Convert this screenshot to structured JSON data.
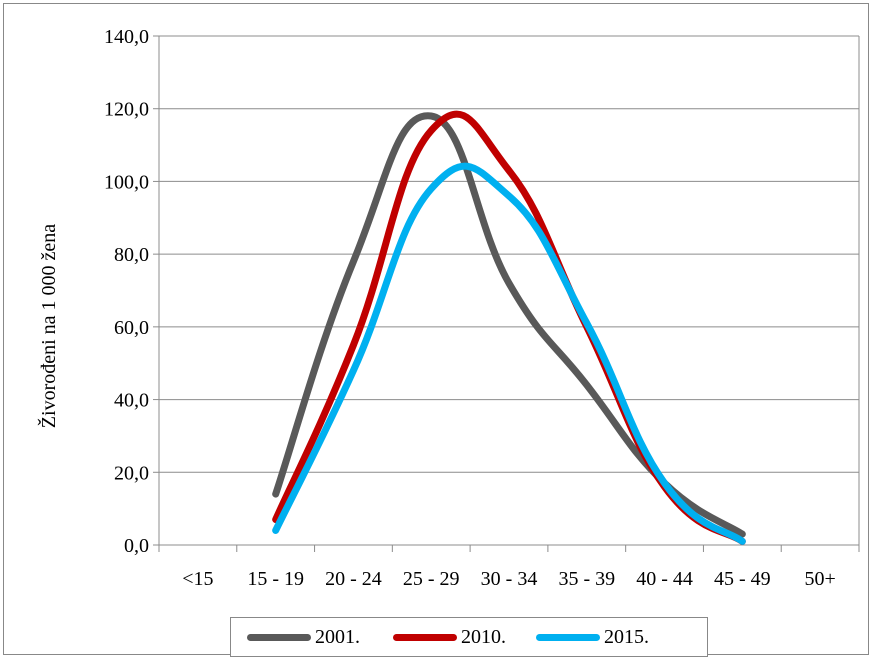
{
  "chart_data": {
    "type": "line",
    "title": "",
    "xlabel": "",
    "ylabel": "Živorođeni na 1 000 žena",
    "categories": [
      "<15",
      "15 - 19",
      "20 - 24",
      "25 - 29",
      "30 - 34",
      "35 - 39",
      "40 - 44",
      "45 - 49",
      "50+"
    ],
    "ylim": [
      0,
      140
    ],
    "yticks": [
      "0,0",
      "20,0",
      "40,0",
      "60,0",
      "80,0",
      "100,0",
      "120,0",
      "140,0"
    ],
    "grid": true,
    "legend_position": "bottom",
    "smooth": true,
    "series": [
      {
        "name": "2001.",
        "color": "#595959",
        "values": [
          null,
          14.0,
          78.0,
          118.0,
          72.0,
          44.0,
          17.0,
          3.0,
          null
        ]
      },
      {
        "name": "2010.",
        "color": "#C00000",
        "values": [
          null,
          7.0,
          55.0,
          114.0,
          103.0,
          60.0,
          16.0,
          1.0,
          null
        ]
      },
      {
        "name": "2015.",
        "color": "#00B0F0",
        "values": [
          null,
          4.0,
          48.0,
          98.0,
          96.0,
          61.0,
          17.0,
          1.0,
          null
        ]
      }
    ]
  }
}
